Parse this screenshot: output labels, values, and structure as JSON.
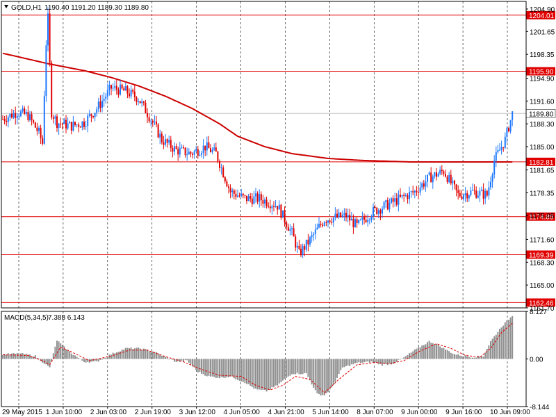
{
  "header": {
    "symbol": "GOLD,H1",
    "ohlc": "1190.40 1191.20 1189.30 1189.80"
  },
  "macd_header": {
    "label": "MACD(5,34,5)",
    "values": "7.388 6.143"
  },
  "colors": {
    "bull": "#1E78FF",
    "bear": "#E00000",
    "ma": "#CC0000",
    "level": "#E00000",
    "macd_bar": "#909090",
    "signal": "#E00000",
    "grid": "#000000"
  },
  "chart_data": [
    {
      "type": "candlestick",
      "name": "GOLD,H1",
      "ylim": [
        1161.7,
        1206.0
      ],
      "y_ticks": [
        "1204.90",
        "1201.65",
        "1198.35",
        "1194.90",
        "1191.60",
        "1188.30",
        "1185.00",
        "1181.65",
        "1178.35",
        "1175.05",
        "1171.60",
        "1168.30",
        "1165.00",
        "1161.70"
      ],
      "x_ticks": [
        "29 May 2015",
        "1 Jun 10:00",
        "2 Jun 03:00",
        "2 Jun 19:00",
        "3 Jun 12:00",
        "4 Jun 05:00",
        "4 Jun 21:00",
        "5 Jun 14:00",
        "8 Jun 07:00",
        "9 Jun 00:00",
        "9 Jun 16:00",
        "10 Jun 09:00"
      ],
      "horizontal_levels": [
        "1204.01",
        "1195.90",
        "1182.81",
        "1174.89",
        "1169.39",
        "1162.46"
      ],
      "current_price": "1189.80",
      "close_path": [
        [
          0,
          1189
        ],
        [
          8,
          1190
        ],
        [
          14,
          1189.5
        ],
        [
          20,
          1187
        ],
        [
          22,
          1185.5
        ],
        [
          24,
          1200
        ],
        [
          25,
          1203.5
        ],
        [
          27,
          1190
        ],
        [
          30,
          1188.5
        ],
        [
          38,
          1188
        ],
        [
          45,
          1188.5
        ],
        [
          52,
          1190.5
        ],
        [
          60,
          1193.5
        ],
        [
          68,
          1193
        ],
        [
          75,
          1192
        ],
        [
          82,
          1189
        ],
        [
          88,
          1186
        ],
        [
          96,
          1184.5
        ],
        [
          104,
          1184
        ],
        [
          112,
          1185
        ],
        [
          118,
          1184
        ],
        [
          126,
          1178.5
        ],
        [
          134,
          1177.5
        ],
        [
          142,
          1177.5
        ],
        [
          152,
          1176.5
        ],
        [
          160,
          1172.5
        ],
        [
          164,
          1169.5
        ],
        [
          170,
          1171.5
        ],
        [
          178,
          1174.5
        ],
        [
          190,
          1175
        ],
        [
          196,
          1173.5
        ],
        [
          204,
          1175.5
        ],
        [
          212,
          1176.5
        ],
        [
          220,
          1177.5
        ],
        [
          228,
          1178.5
        ],
        [
          236,
          1180.5
        ],
        [
          244,
          1181.5
        ],
        [
          252,
          1178
        ],
        [
          260,
          1178.5
        ],
        [
          268,
          1178
        ],
        [
          272,
          1183
        ],
        [
          278,
          1186
        ],
        [
          282,
          1189.8
        ]
      ],
      "ma_path": [
        [
          0,
          1198.5
        ],
        [
          25,
          1197
        ],
        [
          45,
          1196
        ],
        [
          60,
          1195
        ],
        [
          75,
          1193.8
        ],
        [
          90,
          1192.3
        ],
        [
          105,
          1190.5
        ],
        [
          120,
          1188.3
        ],
        [
          130,
          1186.5
        ],
        [
          145,
          1185
        ],
        [
          160,
          1184
        ],
        [
          180,
          1183.3
        ],
        [
          200,
          1183
        ],
        [
          225,
          1182.8
        ],
        [
          260,
          1182.8
        ],
        [
          282,
          1182.8
        ]
      ]
    },
    {
      "type": "bar",
      "name": "MACD(5,34,5)",
      "ylim": [
        -8.144,
        8.127
      ],
      "y_ticks": [
        "8.127",
        "0.00",
        "-8.144"
      ],
      "hist_path": [
        [
          0,
          0.8
        ],
        [
          10,
          0.9
        ],
        [
          18,
          0.5
        ],
        [
          22,
          -0.5
        ],
        [
          26,
          -1.5
        ],
        [
          30,
          3.2
        ],
        [
          34,
          2
        ],
        [
          38,
          1
        ],
        [
          45,
          -0.5
        ],
        [
          52,
          -0.5
        ],
        [
          60,
          0.8
        ],
        [
          68,
          1.8
        ],
        [
          76,
          1.8
        ],
        [
          84,
          1.2
        ],
        [
          90,
          0.3
        ],
        [
          96,
          -0.5
        ],
        [
          102,
          -0.3
        ],
        [
          108,
          -2.2
        ],
        [
          114,
          -3.0
        ],
        [
          120,
          -3.2
        ],
        [
          126,
          -3.0
        ],
        [
          134,
          -4
        ],
        [
          140,
          -5.2
        ],
        [
          146,
          -5.5
        ],
        [
          152,
          -4.5
        ],
        [
          160,
          -2.5
        ],
        [
          168,
          -2.5
        ],
        [
          174,
          -6
        ],
        [
          178,
          -6.2
        ],
        [
          182,
          -5
        ],
        [
          188,
          -1.5
        ],
        [
          196,
          -0.7
        ],
        [
          204,
          -0.5
        ],
        [
          210,
          -1
        ],
        [
          216,
          -0.8
        ],
        [
          222,
          0.2
        ],
        [
          228,
          1.5
        ],
        [
          236,
          3.0
        ],
        [
          240,
          2.5
        ],
        [
          244,
          1.8
        ],
        [
          250,
          0.8
        ],
        [
          260,
          0.3
        ],
        [
          266,
          0.5
        ],
        [
          270,
          3
        ],
        [
          276,
          5.5
        ],
        [
          282,
          7.4
        ]
      ],
      "signal_path": [
        [
          0,
          0.7
        ],
        [
          14,
          0.6
        ],
        [
          22,
          -0.3
        ],
        [
          26,
          -1.0
        ],
        [
          32,
          2.0
        ],
        [
          38,
          1.2
        ],
        [
          48,
          -0.3
        ],
        [
          60,
          0.5
        ],
        [
          70,
          1.5
        ],
        [
          80,
          1.5
        ],
        [
          90,
          0.4
        ],
        [
          100,
          -0.5
        ],
        [
          110,
          -1.8
        ],
        [
          120,
          -2.8
        ],
        [
          132,
          -3.0
        ],
        [
          140,
          -4.5
        ],
        [
          148,
          -5.3
        ],
        [
          155,
          -4.5
        ],
        [
          162,
          -3.0
        ],
        [
          170,
          -3.5
        ],
        [
          178,
          -5.8
        ],
        [
          186,
          -3.5
        ],
        [
          196,
          -1.0
        ],
        [
          206,
          -0.6
        ],
        [
          214,
          -0.8
        ],
        [
          222,
          -0.3
        ],
        [
          230,
          1.2
        ],
        [
          240,
          2.6
        ],
        [
          248,
          1.8
        ],
        [
          256,
          0.6
        ],
        [
          264,
          0.3
        ],
        [
          270,
          1.8
        ],
        [
          276,
          4.5
        ],
        [
          282,
          6.1
        ]
      ]
    }
  ]
}
